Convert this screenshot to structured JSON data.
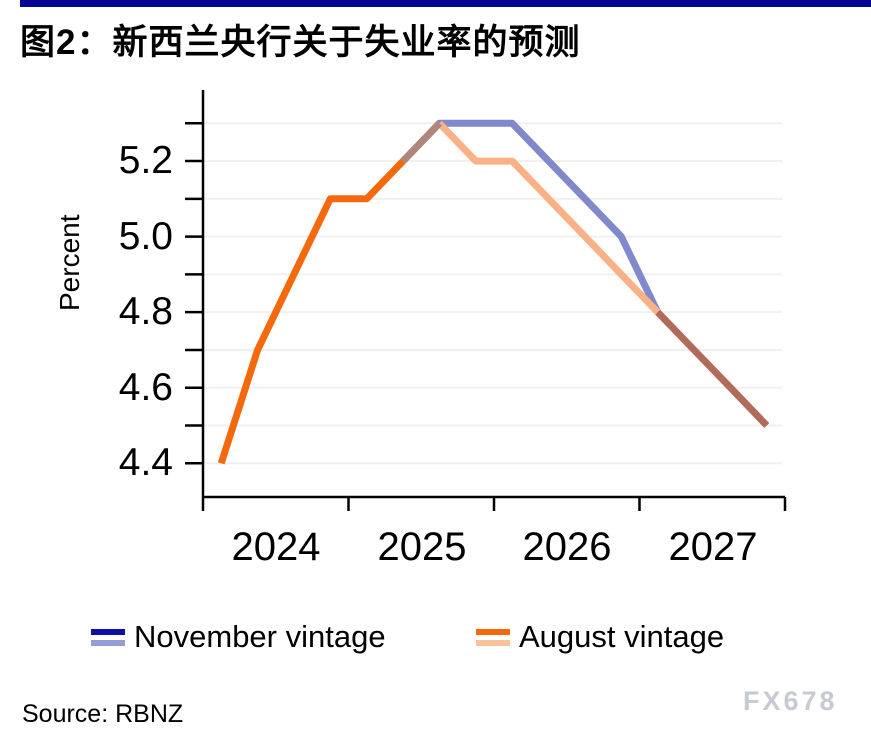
{
  "accent": {
    "top_bar_color": "#050593"
  },
  "header": {
    "title": "图2：新西兰央行关于失业率的预测"
  },
  "chart_data": {
    "type": "line",
    "title": "图2：新西兰央行关于失业率的预测",
    "ylabel": "Percent",
    "xlabel": "",
    "x_unit": "quarterly",
    "ylim": [
      4.3,
      5.4
    ],
    "grid": true,
    "legend_position": "bottom",
    "y_major_tick_labels": [
      "5.2",
      "5.0",
      "4.8",
      "4.6",
      "4.4"
    ],
    "y_grid_values": [
      4.4,
      4.5,
      4.6,
      4.7,
      4.8,
      4.9,
      5.0,
      5.1,
      5.2,
      5.3
    ],
    "x_year_labels": [
      "2024",
      "2025",
      "2026",
      "2027"
    ],
    "series": [
      {
        "name": "November vintage",
        "start": "2025Q2",
        "values": [
          5.2,
          5.3,
          5.3,
          5.3,
          5.2,
          5.1,
          5.0,
          4.8,
          4.7,
          4.6,
          4.5
        ],
        "line_color": "#8089CB",
        "legend_colors": [
          "#0D0DA8",
          "#949DD8"
        ]
      },
      {
        "name": "August vintage",
        "start": "2024Q1",
        "values": [
          4.4,
          4.7,
          4.9,
          5.1,
          5.1,
          5.2,
          5.3,
          5.2,
          5.2,
          5.1,
          5.0,
          4.9,
          4.8,
          4.7,
          4.6,
          4.5
        ],
        "actual_through": "2025Q2",
        "line_color_actual": "#F5690D",
        "line_color_forecast": "#F9B185",
        "legend_colors": [
          "#F5690D",
          "#FBC29B"
        ]
      }
    ],
    "overlap_colors": {
      "rise": "#B0867A",
      "fall": "#B26A5B"
    }
  },
  "footer": {
    "source": "Source: RBNZ",
    "watermark": "FX678"
  }
}
